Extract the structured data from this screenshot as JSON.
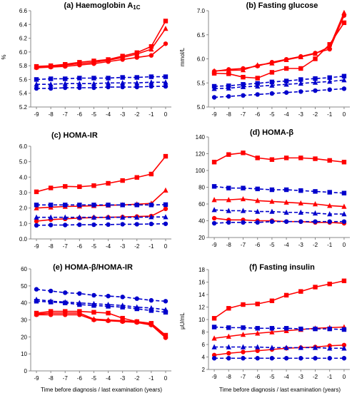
{
  "x_axis_title": "Time before diagnosis / last examination (years)",
  "colors": {
    "red": "#ff0000",
    "blue": "#0000cc",
    "axis": "#888888"
  },
  "chart_data": [
    {
      "type": "line",
      "title": "(a) Haemoglobin A",
      "title_subscript": "1C",
      "ylabel": "%",
      "ylim": [
        5.2,
        6.6
      ],
      "yticks": [
        "5.2",
        "5.4",
        "5.6",
        "5.8",
        "6.0",
        "6.2",
        "6.4",
        "6.6"
      ],
      "x": [
        -9,
        -8,
        -7,
        -6,
        -5,
        -4,
        -3,
        -2,
        -1,
        0
      ],
      "xticks": [
        "-9",
        "-8",
        "-7",
        "-6",
        "-5",
        "-4",
        "-3",
        "-2",
        "-1",
        "0"
      ],
      "series": [
        {
          "color": "red",
          "marker": "square",
          "dash": false,
          "values": [
            5.79,
            5.8,
            5.82,
            5.85,
            5.87,
            5.89,
            5.94,
            5.99,
            6.08,
            6.45
          ]
        },
        {
          "color": "red",
          "marker": "triangle",
          "dash": false,
          "values": [
            5.78,
            5.79,
            5.81,
            5.83,
            5.85,
            5.88,
            5.92,
            5.97,
            6.04,
            6.34
          ]
        },
        {
          "color": "red",
          "marker": "circle",
          "dash": false,
          "values": [
            5.77,
            5.78,
            5.79,
            5.81,
            5.83,
            5.86,
            5.89,
            5.92,
            5.95,
            6.12
          ]
        },
        {
          "color": "blue",
          "marker": "square",
          "dash": true,
          "values": [
            5.6,
            5.61,
            5.61,
            5.62,
            5.62,
            5.62,
            5.63,
            5.63,
            5.64,
            5.64
          ]
        },
        {
          "color": "blue",
          "marker": "triangle",
          "dash": true,
          "values": [
            5.53,
            5.53,
            5.54,
            5.54,
            5.54,
            5.55,
            5.55,
            5.55,
            5.56,
            5.56
          ]
        },
        {
          "color": "blue",
          "marker": "circle",
          "dash": true,
          "values": [
            5.47,
            5.47,
            5.48,
            5.48,
            5.48,
            5.49,
            5.49,
            5.49,
            5.5,
            5.5
          ]
        }
      ]
    },
    {
      "type": "line",
      "title": "(b) Fasting glucose",
      "ylabel": "mmol/L",
      "ylim": [
        5.0,
        7.0
      ],
      "yticks": [
        "5.0",
        "5.5",
        "6.0",
        "6.5",
        "7.0"
      ],
      "x": [
        -9,
        -8,
        -7,
        -6,
        -5,
        -4,
        -3,
        -2,
        -1,
        0
      ],
      "xticks": [
        "-9",
        "-8",
        "-7",
        "-6",
        "-5",
        "-4",
        "-3",
        "-2",
        "-1",
        "0"
      ],
      "series": [
        {
          "color": "red",
          "marker": "square",
          "dash": false,
          "values": [
            5.7,
            5.69,
            5.62,
            5.6,
            5.72,
            5.8,
            5.8,
            6.0,
            6.3,
            6.75
          ]
        },
        {
          "color": "red",
          "marker": "triangle",
          "dash": false,
          "values": [
            5.75,
            5.76,
            5.77,
            5.87,
            5.91,
            5.98,
            6.04,
            6.11,
            6.25,
            6.96
          ]
        },
        {
          "color": "red",
          "marker": "circle",
          "dash": false,
          "values": [
            5.74,
            5.78,
            5.8,
            5.85,
            5.93,
            5.99,
            6.05,
            6.12,
            6.2,
            6.9
          ]
        },
        {
          "color": "blue",
          "marker": "square",
          "dash": true,
          "values": [
            5.43,
            5.44,
            5.47,
            5.49,
            5.52,
            5.54,
            5.57,
            5.59,
            5.61,
            5.64
          ]
        },
        {
          "color": "blue",
          "marker": "triangle",
          "dash": true,
          "values": [
            5.38,
            5.39,
            5.42,
            5.43,
            5.45,
            5.47,
            5.49,
            5.51,
            5.53,
            5.56
          ]
        },
        {
          "color": "blue",
          "marker": "circle",
          "dash": true,
          "values": [
            5.2,
            5.22,
            5.24,
            5.26,
            5.28,
            5.3,
            5.32,
            5.34,
            5.36,
            5.38
          ]
        }
      ]
    },
    {
      "type": "line",
      "title": "(c) HOMA-IR",
      "ylabel": "",
      "ylim": [
        0.0,
        6.0
      ],
      "yticks": [
        "0.0",
        "1.0",
        "2.0",
        "3.0",
        "4.0",
        "5.0",
        "6.0"
      ],
      "x": [
        -9,
        -8,
        -7,
        -6,
        -5,
        -4,
        -3,
        -2,
        -1,
        0
      ],
      "xticks": [
        "-9",
        "-8",
        "-7",
        "-6",
        "-5",
        "-4",
        "-3",
        "-2",
        "-1",
        "0"
      ],
      "series": [
        {
          "color": "red",
          "marker": "square",
          "dash": false,
          "values": [
            3.05,
            3.3,
            3.4,
            3.38,
            3.45,
            3.6,
            3.78,
            3.98,
            4.2,
            5.35
          ]
        },
        {
          "color": "red",
          "marker": "triangle",
          "dash": false,
          "values": [
            2.0,
            2.05,
            2.1,
            2.12,
            2.15,
            2.18,
            2.2,
            2.25,
            2.3,
            3.15
          ]
        },
        {
          "color": "red",
          "marker": "circle",
          "dash": false,
          "values": [
            1.15,
            1.25,
            1.3,
            1.35,
            1.38,
            1.4,
            1.42,
            1.45,
            1.48,
            1.95
          ]
        },
        {
          "color": "blue",
          "marker": "square",
          "dash": true,
          "values": [
            2.2,
            2.2,
            2.2,
            2.2,
            2.2,
            2.2,
            2.2,
            2.2,
            2.2,
            2.22
          ]
        },
        {
          "color": "blue",
          "marker": "triangle",
          "dash": true,
          "values": [
            1.4,
            1.4,
            1.4,
            1.4,
            1.4,
            1.4,
            1.4,
            1.4,
            1.42,
            1.42
          ]
        },
        {
          "color": "blue",
          "marker": "circle",
          "dash": true,
          "values": [
            0.88,
            0.9,
            0.9,
            0.92,
            0.92,
            0.93,
            0.95,
            0.95,
            0.97,
            0.98
          ]
        }
      ]
    },
    {
      "type": "line",
      "title": "(d) HOMA-β",
      "ylabel": "",
      "ylim": [
        20,
        140
      ],
      "yticks": [
        "20",
        "40",
        "60",
        "80",
        "100",
        "120",
        "140"
      ],
      "x": [
        -9,
        -8,
        -7,
        -6,
        -5,
        -4,
        -3,
        -2,
        -1,
        0
      ],
      "xticks": [
        "-9",
        "-8",
        "-7",
        "-6",
        "-5",
        "-4",
        "-3",
        "-2",
        "-1",
        "0"
      ],
      "series": [
        {
          "color": "red",
          "marker": "square",
          "dash": false,
          "values": [
            110,
            119,
            121,
            115,
            113,
            115,
            115,
            114,
            112,
            110
          ]
        },
        {
          "color": "blue",
          "marker": "square",
          "dash": true,
          "values": [
            81,
            79,
            79,
            78,
            77,
            77,
            76,
            75,
            74,
            73
          ]
        },
        {
          "color": "red",
          "marker": "triangle",
          "dash": false,
          "values": [
            65,
            65,
            66,
            64,
            63,
            62,
            61,
            60,
            58,
            57
          ]
        },
        {
          "color": "blue",
          "marker": "triangle",
          "dash": true,
          "values": [
            53,
            52,
            52,
            51,
            51,
            50,
            50,
            49,
            48,
            48
          ]
        },
        {
          "color": "red",
          "marker": "circle",
          "dash": false,
          "values": [
            43,
            41,
            41,
            40,
            40,
            39,
            39,
            38,
            38,
            37
          ]
        },
        {
          "color": "blue",
          "marker": "circle",
          "dash": true,
          "values": [
            37,
            38,
            38,
            38,
            39,
            39,
            39,
            39,
            39,
            39
          ]
        }
      ]
    },
    {
      "type": "line",
      "title": "(e) HOMA-β/HOMA-IR",
      "ylabel": "",
      "ylim": [
        0,
        60
      ],
      "yticks": [
        "0",
        "10",
        "20",
        "30",
        "40",
        "50",
        "60"
      ],
      "x": [
        -9,
        -8,
        -7,
        -6,
        -5,
        -4,
        -3,
        -2,
        -1,
        0
      ],
      "xticks": [
        "-9",
        "-8",
        "-7",
        "-6",
        "-5",
        "-4",
        "-3",
        "-2",
        "-1",
        "0"
      ],
      "series": [
        {
          "color": "blue",
          "marker": "circle",
          "dash": true,
          "values": [
            48,
            47,
            46,
            45.5,
            44.5,
            44,
            43.5,
            42.5,
            41.5,
            41
          ]
        },
        {
          "color": "blue",
          "marker": "triangle",
          "dash": true,
          "values": [
            42,
            41,
            40.5,
            40,
            39.5,
            39,
            38.5,
            37.5,
            37,
            36
          ]
        },
        {
          "color": "blue",
          "marker": "square",
          "dash": true,
          "values": [
            41,
            40.5,
            40,
            39,
            38.5,
            38,
            37.5,
            36.5,
            35.5,
            34.5
          ]
        },
        {
          "color": "red",
          "marker": "square",
          "dash": false,
          "values": [
            34,
            35,
            35,
            35,
            34.5,
            34,
            31,
            29,
            28,
            21
          ]
        },
        {
          "color": "red",
          "marker": "triangle",
          "dash": false,
          "values": [
            33.5,
            34,
            34,
            34,
            30.5,
            30,
            29.5,
            29,
            27.5,
            20.5
          ]
        },
        {
          "color": "red",
          "marker": "circle",
          "dash": false,
          "values": [
            33,
            33,
            33,
            33,
            30,
            29.5,
            29,
            28.5,
            27,
            19.5
          ]
        }
      ]
    },
    {
      "type": "line",
      "title": "(f) Fasting insulin",
      "ylabel": "μU/mL",
      "ylim": [
        2,
        18
      ],
      "yticks": [
        "2",
        "4",
        "6",
        "8",
        "10",
        "12",
        "14",
        "16",
        "18"
      ],
      "x": [
        -9,
        -8,
        -7,
        -6,
        -5,
        -4,
        -3,
        -2,
        -1,
        0
      ],
      "xticks": [
        "-9",
        "-8",
        "-7",
        "-6",
        "-5",
        "-4",
        "-3",
        "-2",
        "-1",
        "0"
      ],
      "series": [
        {
          "color": "red",
          "marker": "square",
          "dash": false,
          "values": [
            10.2,
            11.8,
            12.4,
            12.5,
            13.0,
            13.9,
            14.5,
            15.2,
            15.7,
            16.2
          ]
        },
        {
          "color": "red",
          "marker": "triangle",
          "dash": false,
          "values": [
            7.0,
            7.3,
            7.6,
            7.8,
            8.0,
            8.2,
            8.4,
            8.6,
            8.7,
            8.8
          ]
        },
        {
          "color": "red",
          "marker": "circle",
          "dash": false,
          "values": [
            4.3,
            4.6,
            4.8,
            5.0,
            5.2,
            5.4,
            5.5,
            5.6,
            5.8,
            5.9
          ]
        },
        {
          "color": "blue",
          "marker": "square",
          "dash": true,
          "values": [
            8.8,
            8.7,
            8.7,
            8.6,
            8.6,
            8.6,
            8.5,
            8.5,
            8.5,
            8.4
          ]
        },
        {
          "color": "blue",
          "marker": "triangle",
          "dash": true,
          "values": [
            5.6,
            5.6,
            5.6,
            5.6,
            5.5,
            5.5,
            5.5,
            5.5,
            5.4,
            5.4
          ]
        },
        {
          "color": "blue",
          "marker": "circle",
          "dash": true,
          "values": [
            3.8,
            3.8,
            3.8,
            3.8,
            3.8,
            3.8,
            3.8,
            3.8,
            3.8,
            3.8
          ]
        }
      ]
    }
  ]
}
